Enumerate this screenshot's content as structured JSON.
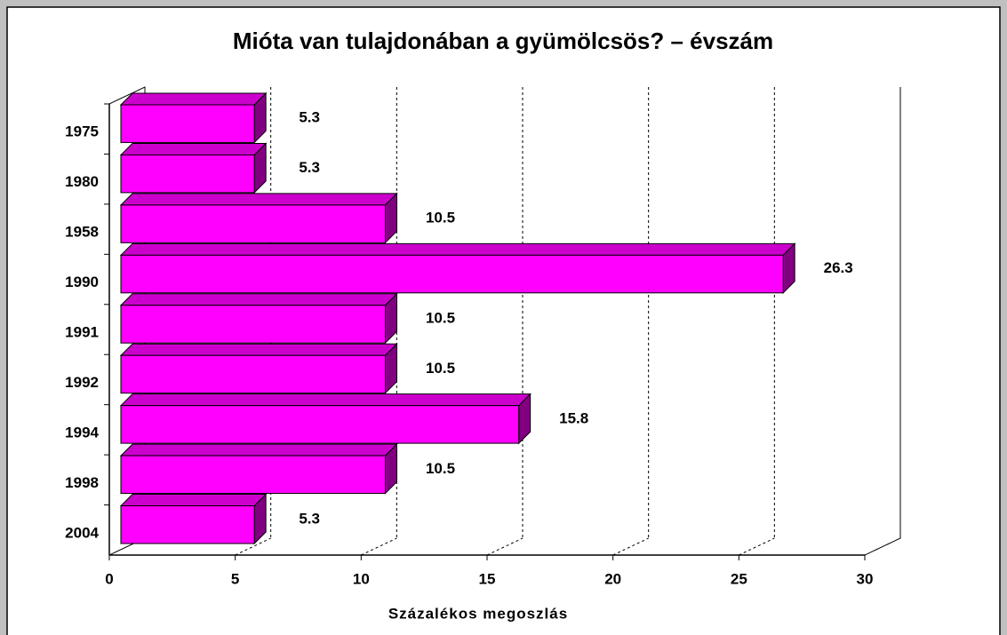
{
  "chart_data": {
    "type": "bar",
    "orientation": "horizontal",
    "three_d": true,
    "title": "Mióta van tulajdonában a gyümölcsös? – évszám",
    "xlabel": "Százalékos megoszlás",
    "categories": [
      "1975",
      "1980",
      "1958",
      "1990",
      "1991",
      "1992",
      "1994",
      "1998",
      "2004"
    ],
    "values": [
      5.3,
      5.3,
      10.5,
      26.3,
      10.5,
      10.5,
      15.8,
      10.5,
      5.3
    ],
    "color": "#ff00ff",
    "xlim": [
      0,
      30
    ],
    "xticks": [
      0,
      5,
      10,
      15,
      20,
      25,
      30
    ],
    "grid": true
  }
}
